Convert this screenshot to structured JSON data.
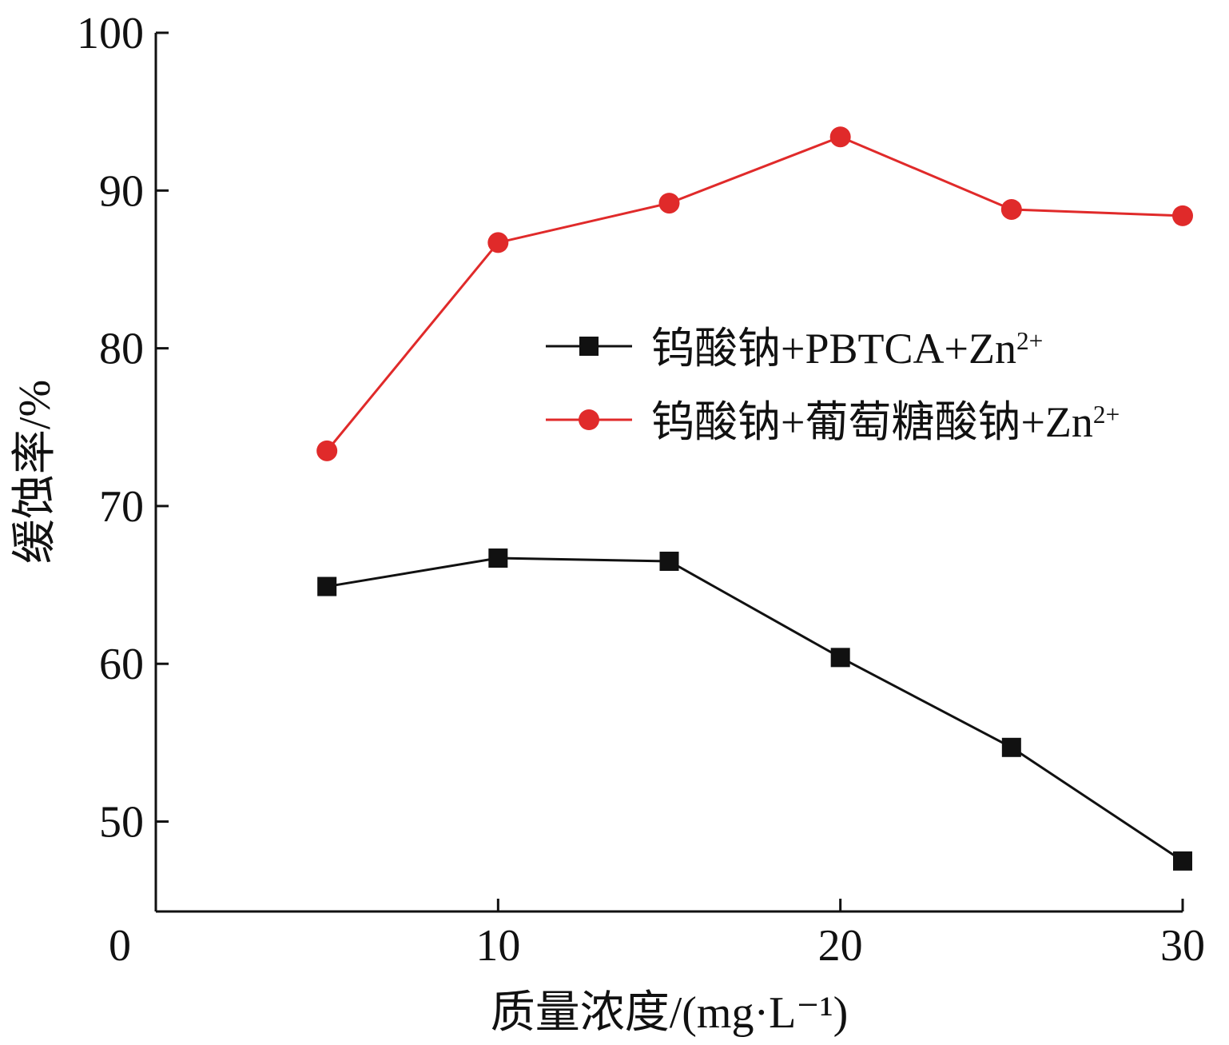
{
  "chart_data": {
    "type": "line",
    "title": "",
    "xlabel": "质量浓度/(mg·L⁻¹)",
    "ylabel": "缓蚀率/%",
    "x_origin_label": "0",
    "xlim": [
      0,
      30
    ],
    "ylim": [
      44.3,
      100
    ],
    "x_ticks": [
      10,
      20,
      30
    ],
    "y_ticks": [
      50,
      60,
      70,
      80,
      90,
      100
    ],
    "x_tick_labels": [
      "10",
      "20",
      "30"
    ],
    "y_tick_labels": [
      "50",
      "60",
      "70",
      "80",
      "90",
      "100"
    ],
    "grid": false,
    "legend_position": "right",
    "x": [
      5,
      10,
      15,
      20,
      25,
      30
    ],
    "series": [
      {
        "name": "钨酸钠+PBTCA+Zn²⁺",
        "color": "#111111",
        "marker": "square",
        "values": [
          64.9,
          66.7,
          66.5,
          60.4,
          54.7,
          47.5
        ]
      },
      {
        "name": "钨酸钠+葡萄糖酸钠+Zn²⁺",
        "color": "#e02a2a",
        "marker": "circle",
        "values": [
          73.5,
          86.7,
          89.2,
          93.4,
          88.8,
          88.4
        ]
      }
    ]
  }
}
